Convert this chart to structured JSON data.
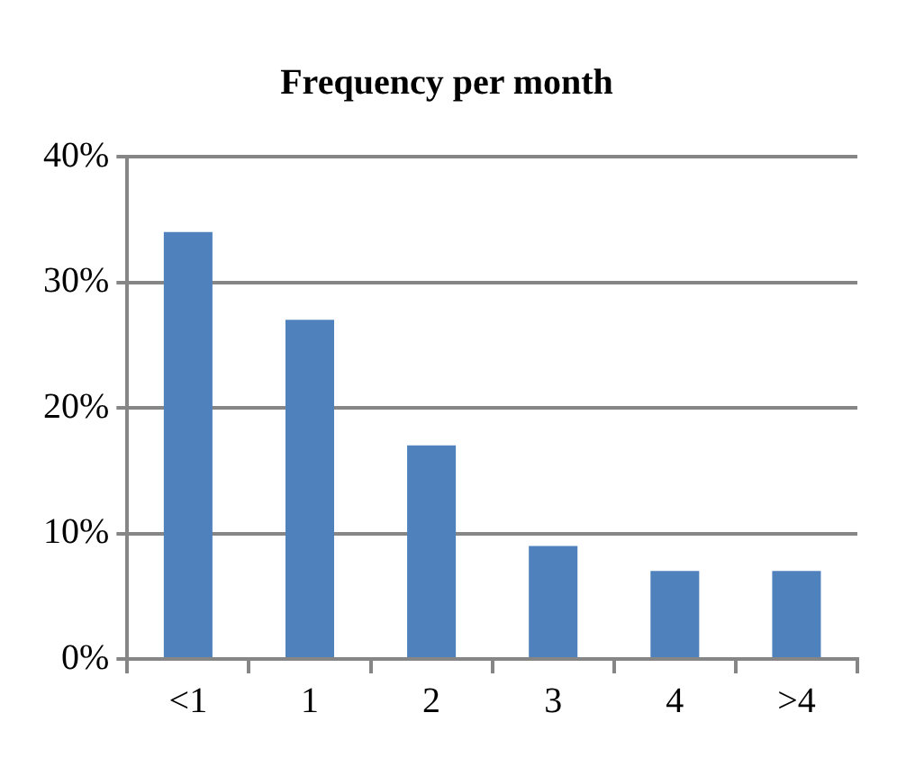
{
  "chart_data": {
    "type": "bar",
    "title": "Frequency per month",
    "categories": [
      "<1",
      "1",
      "2",
      "3",
      "4",
      ">4"
    ],
    "values": [
      34,
      27,
      17,
      9,
      7,
      7
    ],
    "color": "#4f81bd",
    "ylim": [
      0,
      40
    ],
    "yticks": [
      {
        "value": 0,
        "label": "0%"
      },
      {
        "value": 10,
        "label": "10%"
      },
      {
        "value": 20,
        "label": "20%"
      },
      {
        "value": 30,
        "label": "30%"
      },
      {
        "value": 40,
        "label": "40%"
      }
    ],
    "grid": "y",
    "legend": false
  }
}
